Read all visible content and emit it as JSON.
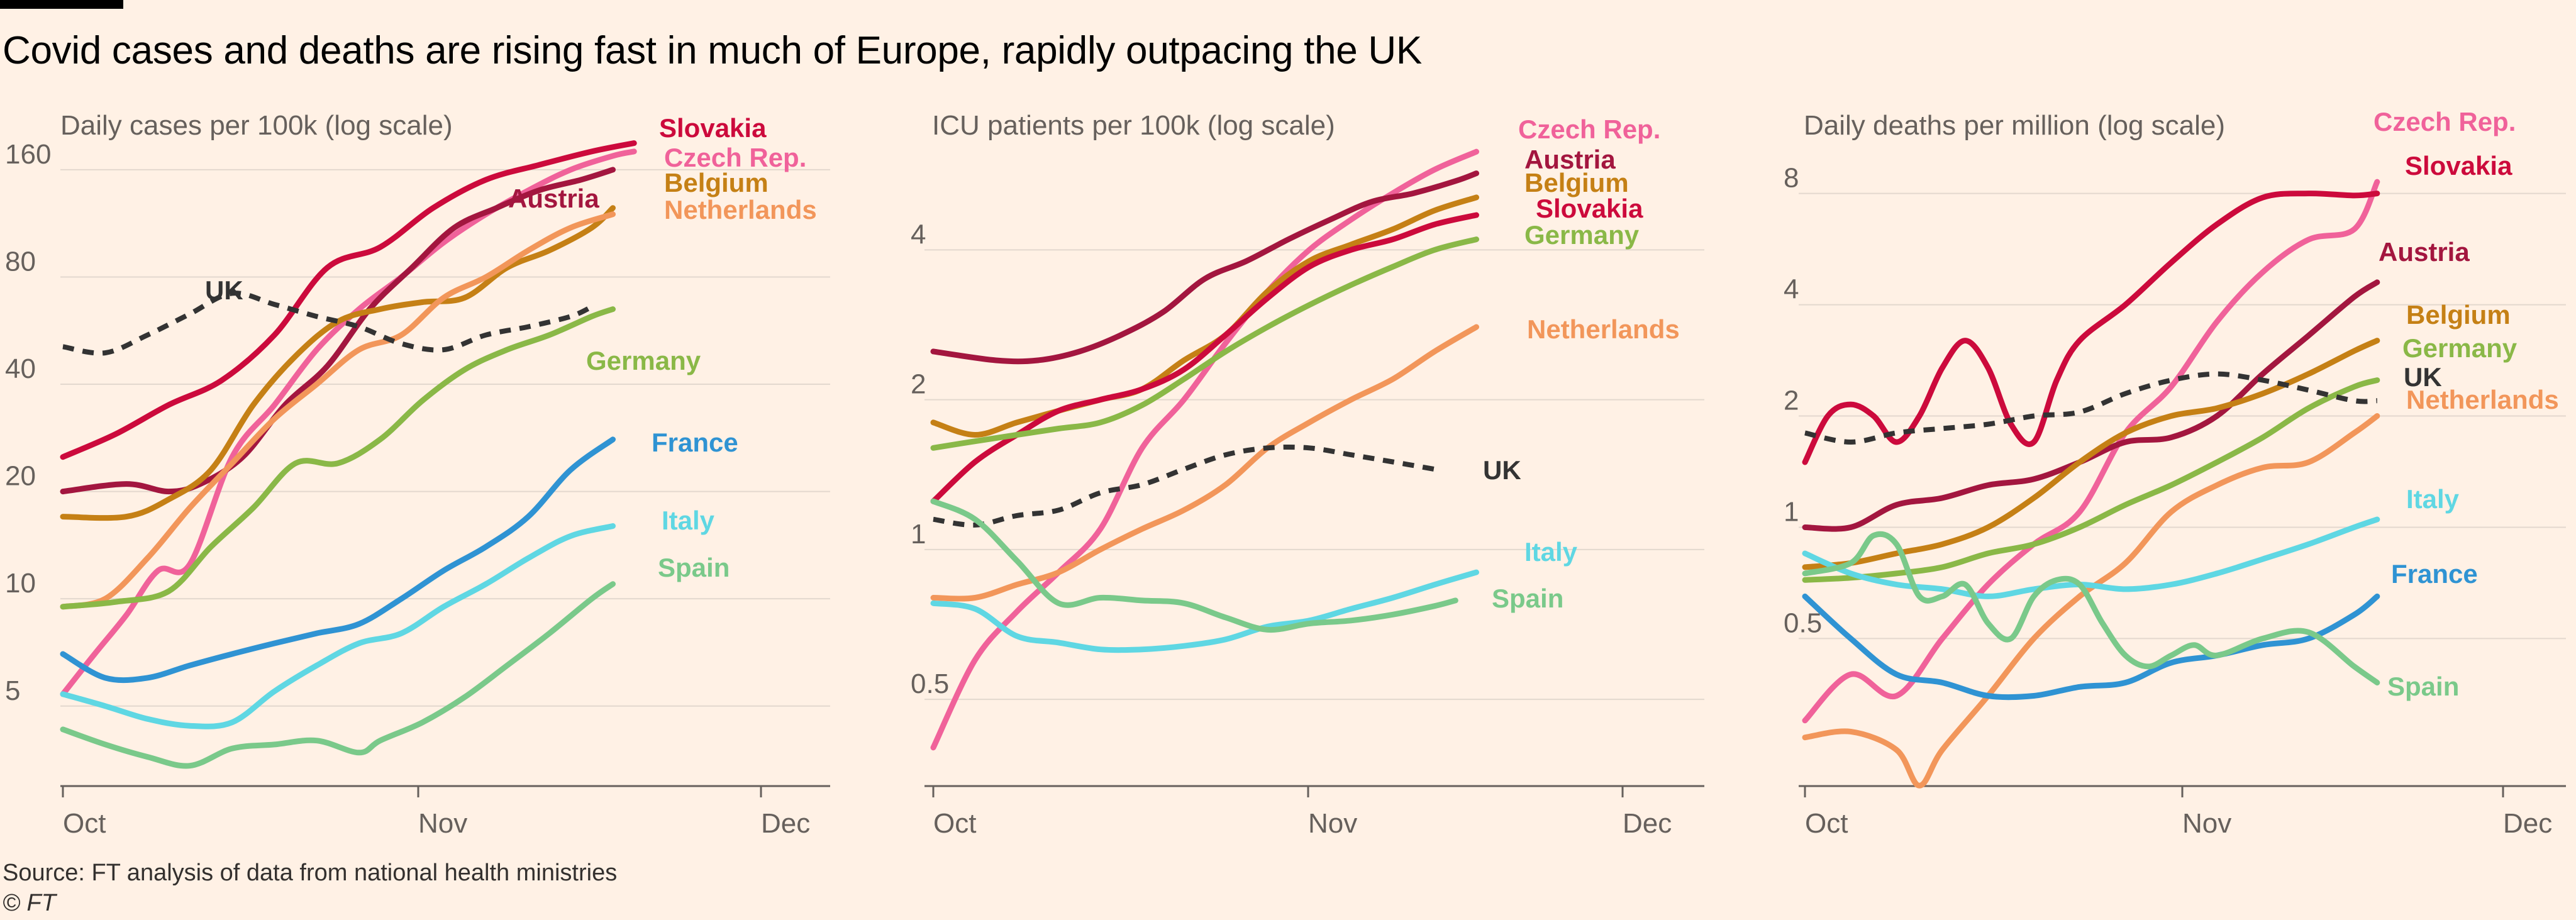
{
  "headline": "Covid cases and deaths are rising fast in much of Europe, rapidly outpacing the UK",
  "source": "Source: FT analysis of data from national health ministries",
  "copyright": "© FT",
  "colors": {
    "Slovakia": "#CC0A3C",
    "Czech Rep.": "#F0629A",
    "Austria": "#A3163F",
    "Belgium": "#C58015",
    "Netherlands": "#F2965A",
    "Germany": "#8AB847",
    "UK": "#333333",
    "France": "#2F93D3",
    "Italy": "#5FD7E3",
    "Spain": "#7AC98A",
    "grid": "#E3D8CE",
    "axis": "#66605C"
  },
  "chart_data": [
    {
      "type": "line",
      "title": "Daily cases per 100k (log scale)",
      "yscale": "log",
      "ylim": [
        3.3,
        200
      ],
      "yticks": [
        5,
        10,
        20,
        40,
        80,
        160
      ],
      "ytick_labels": [
        "5",
        "10",
        "20",
        "40",
        "80",
        "160"
      ],
      "x_dates": [
        "2020-10-01",
        "2020-11-01",
        "2020-12-01"
      ],
      "x_labels": [
        "Oct",
        "Nov",
        "Dec"
      ],
      "xlim_days": [
        0,
        66
      ],
      "series": [
        {
          "name": "Slovakia",
          "x": [
            0,
            5,
            10,
            15,
            20,
            25,
            30,
            35,
            40,
            45,
            50,
            54
          ],
          "y": [
            25,
            29,
            35,
            41,
            55,
            85,
            97,
            125,
            150,
            165,
            180,
            190
          ]
        },
        {
          "name": "Czech Rep.",
          "x": [
            0,
            3,
            6,
            9,
            12,
            16,
            20,
            24,
            28,
            32,
            36,
            40,
            44,
            48,
            52,
            54
          ],
          "y": [
            5.4,
            7,
            9,
            12,
            12.5,
            25,
            35,
            50,
            65,
            80,
            100,
            120,
            140,
            160,
            175,
            180
          ]
        },
        {
          "name": "Austria",
          "x": [
            0,
            6,
            10,
            13,
            17,
            21,
            25,
            29,
            33,
            37,
            41,
            45,
            49,
            52
          ],
          "y": [
            20,
            21,
            20,
            21,
            25,
            35,
            45,
            65,
            85,
            110,
            125,
            140,
            150,
            160
          ]
        },
        {
          "name": "Belgium",
          "x": [
            0,
            6,
            10,
            14,
            18,
            22,
            26,
            30,
            34,
            38,
            42,
            46,
            50,
            52
          ],
          "y": [
            17,
            17,
            19,
            23,
            35,
            48,
            60,
            65,
            68,
            70,
            85,
            95,
            110,
            125
          ]
        },
        {
          "name": "Netherlands",
          "x": [
            0,
            4,
            8,
            12,
            16,
            20,
            24,
            28,
            32,
            36,
            40,
            44,
            48,
            52
          ],
          "y": [
            9.5,
            10,
            13,
            18,
            24,
            32,
            40,
            50,
            55,
            70,
            80,
            95,
            110,
            120
          ]
        },
        {
          "name": "Germany",
          "x": [
            0,
            5,
            10,
            14,
            18,
            22,
            26,
            30,
            34,
            38,
            42,
            46,
            50,
            52
          ],
          "y": [
            9.5,
            9.8,
            10.5,
            14,
            18,
            24,
            24,
            28,
            36,
            44,
            50,
            55,
            62,
            65
          ]
        },
        {
          "name": "UK",
          "x": [
            0,
            4,
            8,
            12,
            16,
            20,
            24,
            28,
            32,
            36,
            40,
            44,
            48,
            50
          ],
          "y": [
            51,
            49,
            55,
            63,
            72,
            67,
            62,
            58,
            52,
            50,
            55,
            58,
            62,
            66
          ]
        },
        {
          "name": "France",
          "x": [
            0,
            4,
            8,
            12,
            16,
            20,
            24,
            28,
            32,
            36,
            40,
            44,
            48,
            52
          ],
          "y": [
            7,
            6,
            6,
            6.5,
            7,
            7.5,
            8,
            8.5,
            10,
            12,
            14,
            17,
            23,
            28
          ]
        },
        {
          "name": "Italy",
          "x": [
            0,
            4,
            8,
            12,
            16,
            20,
            24,
            28,
            32,
            36,
            40,
            44,
            48,
            52
          ],
          "y": [
            5.4,
            5,
            4.6,
            4.4,
            4.5,
            5.5,
            6.5,
            7.5,
            8,
            9.5,
            11,
            13,
            15,
            16
          ]
        },
        {
          "name": "Spain",
          "x": [
            0,
            4,
            8,
            12,
            16,
            20,
            24,
            28,
            30,
            34,
            38,
            42,
            46,
            50,
            52
          ],
          "y": [
            4.3,
            3.9,
            3.6,
            3.4,
            3.8,
            3.9,
            4,
            3.7,
            4,
            4.5,
            5.3,
            6.5,
            8,
            10,
            11
          ]
        }
      ]
    },
    {
      "type": "line",
      "title": "ICU patients per 100k (log scale)",
      "yscale": "log",
      "ylim": [
        0.36,
        6.8
      ],
      "yticks": [
        0.5,
        1,
        2,
        4
      ],
      "ytick_labels": [
        "0.5",
        "1",
        "2",
        "4"
      ],
      "x_dates": [
        "2020-10-01",
        "2020-11-01",
        "2020-12-01"
      ],
      "x_labels": [
        "Oct",
        "Nov",
        "Dec"
      ],
      "xlim_days": [
        0,
        66
      ],
      "series": [
        {
          "name": "Czech Rep.",
          "x": [
            0,
            4,
            8,
            12,
            16,
            20,
            24,
            28,
            32,
            36,
            40,
            44,
            48,
            52
          ],
          "y": [
            0.4,
            0.6,
            0.75,
            0.9,
            1.1,
            1.6,
            2,
            2.6,
            3.3,
            4,
            4.6,
            5.2,
            5.8,
            6.3
          ]
        },
        {
          "name": "Austria",
          "x": [
            0,
            6,
            10,
            14,
            18,
            22,
            26,
            30,
            34,
            38,
            42,
            46,
            50,
            52
          ],
          "y": [
            2.5,
            2.4,
            2.4,
            2.5,
            2.7,
            3,
            3.5,
            3.8,
            4.2,
            4.6,
            5,
            5.2,
            5.5,
            5.7
          ]
        },
        {
          "name": "Belgium",
          "x": [
            0,
            4,
            8,
            12,
            16,
            20,
            24,
            28,
            32,
            36,
            40,
            44,
            48,
            52
          ],
          "y": [
            1.8,
            1.7,
            1.8,
            1.9,
            2,
            2.1,
            2.4,
            2.7,
            3.3,
            3.8,
            4.1,
            4.4,
            4.8,
            5.1
          ]
        },
        {
          "name": "Slovakia",
          "x": [
            0,
            4,
            8,
            12,
            16,
            20,
            24,
            28,
            32,
            36,
            40,
            44,
            48,
            52
          ],
          "y": [
            1.25,
            1.5,
            1.7,
            1.9,
            2,
            2.1,
            2.3,
            2.7,
            3.2,
            3.7,
            4,
            4.2,
            4.5,
            4.7
          ]
        },
        {
          "name": "Germany",
          "x": [
            0,
            4,
            8,
            12,
            16,
            20,
            24,
            28,
            32,
            36,
            40,
            44,
            48,
            52
          ],
          "y": [
            1.6,
            1.65,
            1.7,
            1.75,
            1.8,
            1.95,
            2.2,
            2.5,
            2.8,
            3.1,
            3.4,
            3.7,
            4,
            4.2
          ]
        },
        {
          "name": "Netherlands",
          "x": [
            0,
            4,
            8,
            12,
            16,
            20,
            24,
            28,
            32,
            36,
            40,
            44,
            48,
            52
          ],
          "y": [
            0.8,
            0.8,
            0.85,
            0.9,
            1,
            1.1,
            1.2,
            1.35,
            1.6,
            1.8,
            2,
            2.2,
            2.5,
            2.8
          ]
        },
        {
          "name": "UK",
          "x": [
            0,
            4,
            8,
            12,
            16,
            20,
            24,
            28,
            32,
            36,
            40,
            44,
            48
          ],
          "y": [
            1.15,
            1.12,
            1.17,
            1.2,
            1.3,
            1.35,
            1.45,
            1.55,
            1.6,
            1.6,
            1.55,
            1.5,
            1.45
          ]
        },
        {
          "name": "Italy",
          "x": [
            0,
            4,
            8,
            12,
            16,
            20,
            24,
            28,
            32,
            36,
            40,
            44,
            48,
            52
          ],
          "y": [
            0.78,
            0.76,
            0.67,
            0.65,
            0.63,
            0.63,
            0.64,
            0.66,
            0.7,
            0.72,
            0.76,
            0.8,
            0.85,
            0.9
          ]
        },
        {
          "name": "Spain",
          "x": [
            0,
            4,
            8,
            12,
            16,
            20,
            24,
            28,
            32,
            36,
            40,
            44,
            48,
            50
          ],
          "y": [
            1.25,
            1.15,
            0.95,
            0.78,
            0.8,
            0.79,
            0.78,
            0.73,
            0.69,
            0.71,
            0.72,
            0.74,
            0.77,
            0.79
          ]
        }
      ]
    },
    {
      "type": "line",
      "title": "Daily deaths per million (log scale)",
      "yscale": "log",
      "ylim": [
        0.22,
        11.5
      ],
      "yticks": [
        0.5,
        1,
        2,
        4,
        8
      ],
      "ytick_labels": [
        "0.5",
        "1",
        "2",
        "4",
        "8"
      ],
      "x_dates": [
        "2020-10-01",
        "2020-11-01",
        "2020-12-01"
      ],
      "x_labels": [
        "Oct",
        "Nov",
        "Dec"
      ],
      "xlim_days": [
        0,
        61
      ],
      "series": [
        {
          "name": "Czech Rep.",
          "x": [
            0,
            4,
            8,
            12,
            16,
            20,
            24,
            28,
            32,
            36,
            40,
            44,
            48,
            50
          ],
          "y": [
            0.3,
            0.4,
            0.35,
            0.5,
            0.7,
            0.9,
            1.1,
            1.8,
            2.4,
            3.6,
            4.9,
            6,
            6.4,
            8.6
          ]
        },
        {
          "name": "Slovakia",
          "x": [
            0,
            2,
            4,
            6,
            8,
            10,
            12,
            14,
            16,
            18,
            20,
            22,
            24,
            28,
            32,
            36,
            40,
            44,
            48,
            50
          ],
          "y": [
            1.5,
            2,
            2.15,
            2,
            1.7,
            2,
            2.7,
            3.2,
            2.7,
            1.9,
            1.7,
            2.5,
            3.2,
            4,
            5.2,
            6.6,
            7.8,
            8,
            7.9,
            8
          ]
        },
        {
          "name": "Austria",
          "x": [
            0,
            4,
            8,
            12,
            16,
            20,
            24,
            28,
            32,
            36,
            40,
            44,
            48,
            50
          ],
          "y": [
            1,
            1,
            1.15,
            1.2,
            1.3,
            1.35,
            1.5,
            1.7,
            1.75,
            2,
            2.6,
            3.3,
            4.2,
            4.6
          ]
        },
        {
          "name": "Belgium",
          "x": [
            0,
            4,
            8,
            12,
            16,
            20,
            24,
            28,
            32,
            36,
            40,
            44,
            48,
            50
          ],
          "y": [
            0.78,
            0.8,
            0.85,
            0.9,
            1,
            1.2,
            1.5,
            1.8,
            2,
            2.1,
            2.3,
            2.6,
            3,
            3.2
          ]
        },
        {
          "name": "Germany",
          "x": [
            0,
            4,
            8,
            12,
            16,
            20,
            24,
            28,
            32,
            36,
            40,
            44,
            48,
            50
          ],
          "y": [
            0.72,
            0.73,
            0.75,
            0.78,
            0.85,
            0.9,
            1,
            1.15,
            1.3,
            1.5,
            1.75,
            2.1,
            2.4,
            2.5
          ]
        },
        {
          "name": "UK",
          "x": [
            0,
            4,
            8,
            12,
            16,
            20,
            24,
            28,
            32,
            36,
            40,
            44,
            48,
            50
          ],
          "y": [
            1.8,
            1.7,
            1.8,
            1.85,
            1.9,
            2,
            2.05,
            2.3,
            2.5,
            2.6,
            2.5,
            2.35,
            2.2,
            2.2
          ]
        },
        {
          "name": "Netherlands",
          "x": [
            0,
            4,
            8,
            10,
            12,
            16,
            20,
            24,
            28,
            32,
            36,
            40,
            44,
            48,
            50
          ],
          "y": [
            0.27,
            0.28,
            0.25,
            0.2,
            0.25,
            0.35,
            0.5,
            0.65,
            0.8,
            1.1,
            1.3,
            1.45,
            1.5,
            1.8,
            2
          ]
        },
        {
          "name": "Italy",
          "x": [
            0,
            4,
            8,
            12,
            16,
            20,
            24,
            28,
            32,
            36,
            40,
            44,
            48,
            50
          ],
          "y": [
            0.85,
            0.75,
            0.7,
            0.68,
            0.65,
            0.68,
            0.7,
            0.68,
            0.7,
            0.75,
            0.82,
            0.9,
            1,
            1.05
          ]
        },
        {
          "name": "France",
          "x": [
            0,
            4,
            8,
            12,
            16,
            20,
            24,
            28,
            32,
            36,
            40,
            44,
            48,
            50
          ],
          "y": [
            0.65,
            0.5,
            0.4,
            0.38,
            0.35,
            0.35,
            0.37,
            0.38,
            0.43,
            0.45,
            0.48,
            0.5,
            0.58,
            0.65
          ]
        },
        {
          "name": "Spain",
          "x": [
            0,
            4,
            6,
            8,
            10,
            12,
            14,
            16,
            18,
            20,
            22,
            24,
            26,
            28,
            30,
            32,
            34,
            36,
            40,
            44,
            48,
            50
          ],
          "y": [
            0.75,
            0.8,
            0.95,
            0.9,
            0.65,
            0.65,
            0.7,
            0.55,
            0.5,
            0.65,
            0.72,
            0.7,
            0.55,
            0.45,
            0.42,
            0.45,
            0.48,
            0.45,
            0.5,
            0.52,
            0.42,
            0.38
          ]
        }
      ]
    }
  ]
}
